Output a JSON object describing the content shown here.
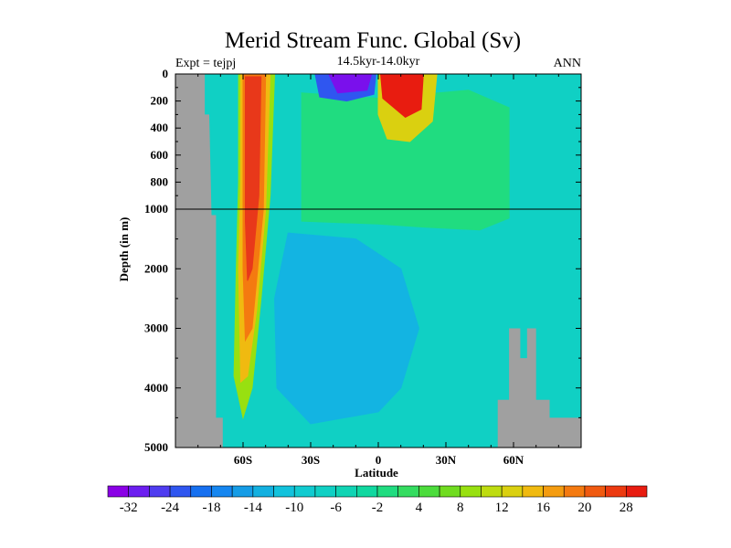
{
  "chart_data": {
    "type": "heatmap",
    "title": "Merid Stream Func. Global (Sv)",
    "subtitle_left": "Expt = tejpj",
    "subtitle_center": "14.5kyr-14.0kyr",
    "subtitle_right": "ANN",
    "xlabel": "Latitude",
    "ylabel": "Depth (in m)",
    "x_ticks": [
      "60S",
      "30S",
      "0",
      "30N",
      "60N"
    ],
    "x_tick_values": [
      -60,
      -30,
      0,
      30,
      60
    ],
    "xlim": [
      -90,
      90
    ],
    "y_ticks_upper": [
      "0",
      "200",
      "400",
      "600",
      "800",
      "1000"
    ],
    "y_tick_values_upper": [
      0,
      200,
      400,
      600,
      800,
      1000
    ],
    "y_ticks_lower": [
      "2000",
      "3000",
      "4000",
      "5000"
    ],
    "y_tick_values_lower": [
      2000,
      3000,
      4000,
      5000
    ],
    "ylim": [
      0,
      5000
    ],
    "axis_break_depth": 1000,
    "colorbar": {
      "labels": [
        "-32",
        "-24",
        "-18",
        "-14",
        "-10",
        "-6",
        "-2",
        "4",
        "8",
        "12",
        "16",
        "20",
        "28"
      ],
      "colors": [
        "#8A00E6",
        "#6C1EF0",
        "#4F3CF0",
        "#2F56F0",
        "#1670F0",
        "#1586F0",
        "#159CE6",
        "#13B0E0",
        "#12C2DC",
        "#11CBD0",
        "#10D0C4",
        "#10D4B4",
        "#10D8A0",
        "#20DC80",
        "#34DC60",
        "#4CDC3C",
        "#70DC20",
        "#98E010",
        "#BEDC10",
        "#DAD010",
        "#F0BA10",
        "#F49C10",
        "#F47A10",
        "#F05A10",
        "#EC3A10",
        "#E81C10"
      ]
    },
    "contours": [
      {
        "value": -6,
        "color": "#1598F0",
        "points": [
          [
            -40,
            2300
          ],
          [
            -20,
            2200
          ],
          [
            -5,
            2500
          ],
          [
            -2,
            3200
          ],
          [
            -10,
            3900
          ],
          [
            -30,
            4200
          ],
          [
            -42,
            3500
          ]
        ]
      },
      {
        "value": -10,
        "color": "#1676F0",
        "points": [
          [
            -38,
            2800
          ],
          [
            -22,
            2700
          ],
          [
            -14,
            3200
          ],
          [
            -22,
            3700
          ],
          [
            -36,
            3700
          ]
        ]
      },
      {
        "value": -2,
        "color": "#13B4E2",
        "points": [
          [
            -40,
            1400
          ],
          [
            -10,
            1500
          ],
          [
            10,
            2000
          ],
          [
            18,
            3000
          ],
          [
            10,
            4000
          ],
          [
            0,
            4400
          ],
          [
            -30,
            4600
          ],
          [
            -45,
            4000
          ],
          [
            -46,
            2500
          ]
        ]
      },
      {
        "value": 8,
        "color": "#34DC60",
        "points": [
          [
            -30,
            200
          ],
          [
            0,
            220
          ],
          [
            30,
            180
          ],
          [
            55,
            280
          ],
          [
            56,
            800
          ],
          [
            40,
            960
          ],
          [
            20,
            920
          ],
          [
            0,
            900
          ],
          [
            -30,
            800
          ]
        ]
      },
      {
        "value": 10,
        "color": "#4CDC3C",
        "points": [
          [
            10,
            600
          ],
          [
            30,
            400
          ],
          [
            52,
            420
          ],
          [
            54,
            800
          ],
          [
            35,
            900
          ],
          [
            20,
            860
          ]
        ]
      },
      {
        "value": 4,
        "color": "#20DC80",
        "points": [
          [
            -34,
            140
          ],
          [
            0,
            180
          ],
          [
            40,
            120
          ],
          [
            58,
            250
          ],
          [
            58,
            1150
          ],
          [
            45,
            1350
          ],
          [
            20,
            1300
          ],
          [
            0,
            1250
          ],
          [
            -34,
            1200
          ]
        ]
      },
      {
        "value": -14,
        "color": "#2F56F0",
        "points": [
          [
            -28,
            0
          ],
          [
            -1,
            0
          ],
          [
            -2,
            150
          ],
          [
            -14,
            200
          ],
          [
            -26,
            170
          ]
        ]
      },
      {
        "value": -32,
        "color": "#7A10EC",
        "points": [
          [
            -22,
            0
          ],
          [
            -3,
            0
          ],
          [
            -5,
            120
          ],
          [
            -18,
            140
          ]
        ]
      },
      {
        "value": 16,
        "color": "#DAD010",
        "points": [
          [
            0,
            0
          ],
          [
            26,
            0
          ],
          [
            24,
            350
          ],
          [
            14,
            500
          ],
          [
            4,
            480
          ],
          [
            0,
            300
          ]
        ]
      },
      {
        "value": 28,
        "color": "#E81C10",
        "points": [
          [
            1,
            0
          ],
          [
            20,
            0
          ],
          [
            19,
            260
          ],
          [
            12,
            320
          ],
          [
            2,
            180
          ]
        ]
      },
      {
        "value": 16,
        "color": "#98E010",
        "points": [
          [
            -62,
            0
          ],
          [
            -46,
            0
          ],
          [
            -48,
            900
          ],
          [
            -52,
            2500
          ],
          [
            -56,
            4000
          ],
          [
            -60,
            4500
          ],
          [
            -64,
            3800
          ],
          [
            -63,
            2000
          ],
          [
            -62,
            800
          ]
        ]
      },
      {
        "value": 20,
        "color": "#F0BA10",
        "points": [
          [
            -61,
            0
          ],
          [
            -48,
            0
          ],
          [
            -50,
            1000
          ],
          [
            -54,
            2700
          ],
          [
            -58,
            3800
          ],
          [
            -61,
            3900
          ],
          [
            -62,
            2000
          ],
          [
            -61,
            800
          ]
        ]
      },
      {
        "value": 24,
        "color": "#F47A10",
        "points": [
          [
            -60,
            0
          ],
          [
            -50,
            0
          ],
          [
            -51,
            1000
          ],
          [
            -56,
            3000
          ],
          [
            -59,
            3200
          ],
          [
            -60,
            2000
          ]
        ]
      },
      {
        "value": 28,
        "color": "#E8381A",
        "points": [
          [
            -59,
            20
          ],
          [
            -52,
            20
          ],
          [
            -53,
            900
          ],
          [
            -56,
            2000
          ],
          [
            -58,
            2200
          ],
          [
            -59,
            1200
          ]
        ]
      }
    ],
    "land_mask": [
      {
        "points": [
          [
            -90,
            0
          ],
          [
            -77,
            0
          ],
          [
            -77,
            300
          ],
          [
            -75,
            300
          ],
          [
            -74,
            1100
          ],
          [
            -72,
            1100
          ],
          [
            -72,
            4500
          ],
          [
            -69,
            4500
          ],
          [
            -69,
            5000
          ],
          [
            -90,
            5000
          ]
        ]
      },
      {
        "points": [
          [
            53,
            4200
          ],
          [
            58,
            4200
          ],
          [
            58,
            3000
          ],
          [
            63,
            3000
          ],
          [
            63,
            3500
          ],
          [
            66,
            3500
          ],
          [
            66,
            3000
          ],
          [
            70,
            3000
          ],
          [
            70,
            4200
          ],
          [
            76,
            4200
          ],
          [
            76,
            4500
          ],
          [
            90,
            4500
          ],
          [
            90,
            5000
          ],
          [
            53,
            5000
          ]
        ]
      }
    ]
  }
}
